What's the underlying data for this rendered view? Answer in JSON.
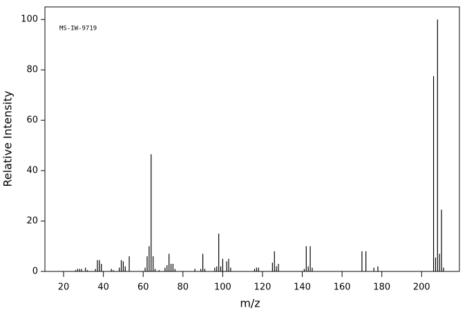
{
  "chart_data": {
    "type": "stem",
    "annotation": "MS-IW-9719",
    "x_label": "m/z",
    "y_label": "Relative Intensity",
    "x": [
      26,
      27,
      28,
      29,
      31,
      32,
      36,
      37,
      38,
      39,
      44,
      45,
      48,
      49,
      50,
      51,
      53,
      61,
      62,
      63,
      64,
      65,
      66,
      68,
      71,
      72,
      73,
      74,
      75,
      76,
      86,
      89,
      90,
      91,
      96,
      97,
      98,
      99,
      100,
      102,
      103,
      104,
      116,
      117,
      118,
      125,
      126,
      127,
      128,
      141,
      142,
      143,
      144,
      145,
      170,
      172,
      176,
      178,
      206,
      207,
      208,
      209,
      210,
      211
    ],
    "values": [
      0.5,
      1,
      1,
      1,
      1.5,
      0.5,
      1,
      4.5,
      4.5,
      3,
      1,
      0.5,
      1.5,
      4.5,
      4,
      2,
      6,
      1.5,
      6,
      10,
      46.5,
      6,
      1,
      0.5,
      1.5,
      2.5,
      7,
      3,
      3,
      1,
      1,
      1,
      7,
      1,
      1.5,
      2,
      15,
      2,
      5,
      4,
      5,
      1.5,
      1,
      1.5,
      1.5,
      3.5,
      8,
      2,
      3,
      1,
      10,
      2,
      10,
      1.5,
      8,
      8,
      1.5,
      2,
      77.5,
      5.5,
      100,
      7,
      24.5,
      1.5
    ],
    "color": "#000000",
    "xlim": [
      10.6,
      219
    ],
    "ylim": [
      0,
      105
    ],
    "xticks": [
      20,
      40,
      60,
      80,
      100,
      120,
      140,
      160,
      180,
      200
    ],
    "yticks": [
      0,
      20,
      40,
      60,
      80,
      100
    ]
  }
}
